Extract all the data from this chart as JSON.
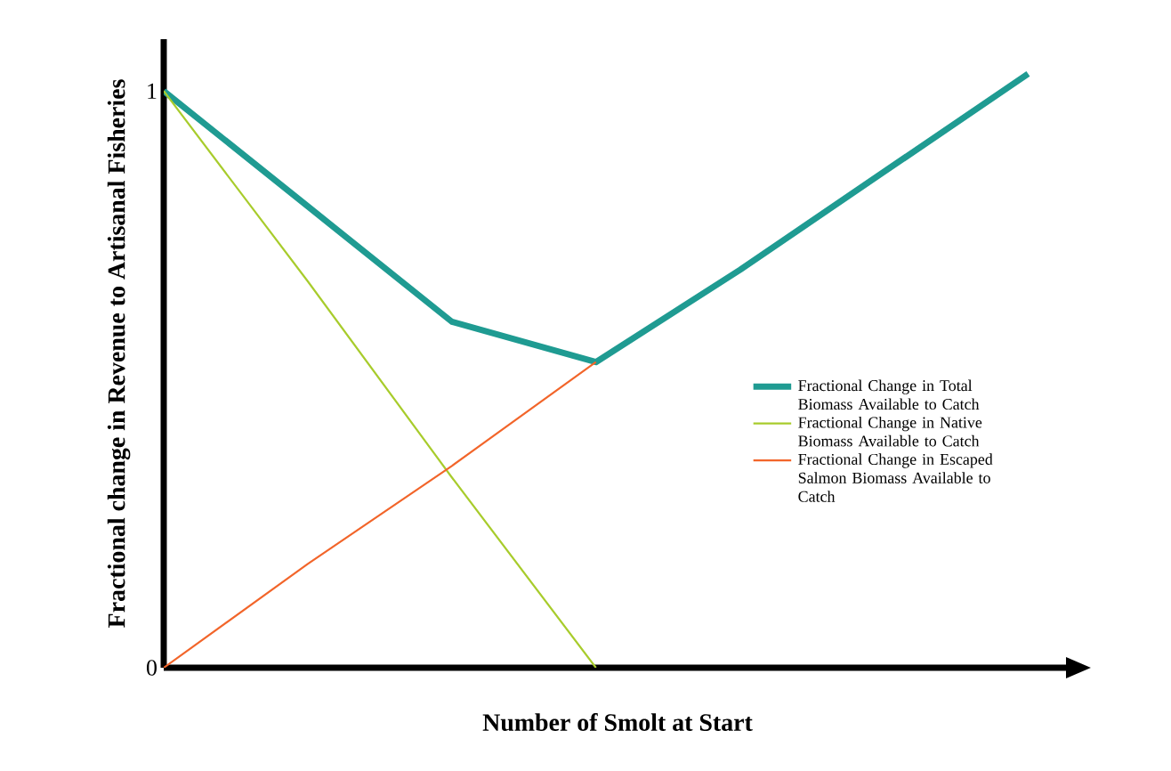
{
  "chart_data": {
    "type": "line",
    "xlabel": "Number of Smolt at Start",
    "ylabel": "Fractional change in Revenue to Artisanal Fisheries",
    "categories": [
      null,
      null,
      null,
      null,
      null,
      null,
      null
    ],
    "ylim": [
      0,
      1.09
    ],
    "yticks": [
      0,
      1
    ],
    "legend": "right",
    "grid": false,
    "marker": "none",
    "line_style": "solid",
    "series": [
      {
        "name": "Fractional Change in Total Biomass Available to Catch",
        "color": "#1f9b92",
        "values": [
          1,
          0.8,
          0.6,
          0.53,
          0.69,
          0.86,
          1.03
        ]
      },
      {
        "name": "Fractional Change in Native Biomass Available to Catch",
        "color": "#a8cc2c",
        "values": [
          1,
          0.67,
          0.33,
          0,
          null,
          null,
          null
        ]
      },
      {
        "name": "Fractional Change in Escaped Salmon Biomass Available to Catch",
        "color": "#f2652a",
        "values": [
          0,
          0.18,
          0.35,
          0.53,
          null,
          null,
          null
        ]
      }
    ]
  }
}
